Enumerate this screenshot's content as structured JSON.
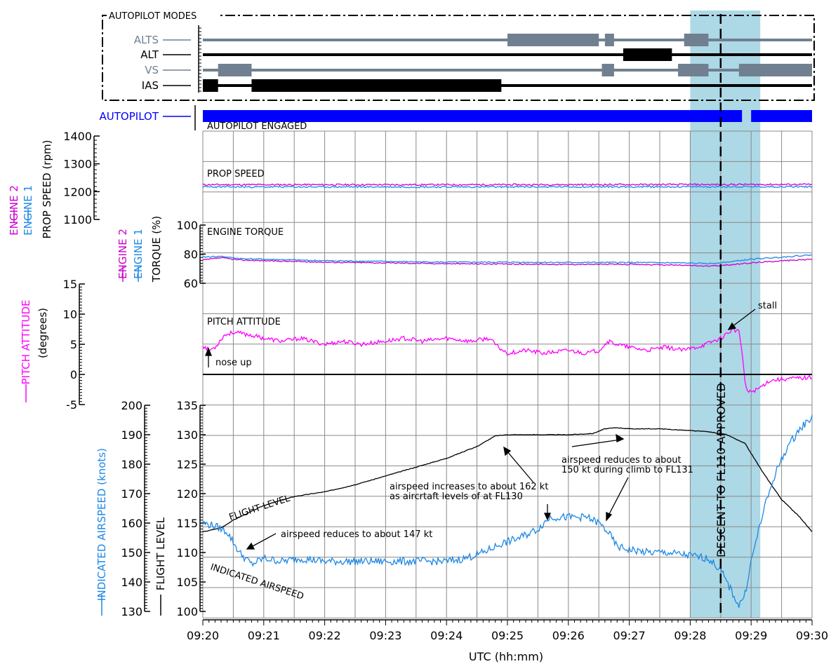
{
  "autopilot_modes": {
    "title": "AUTOPILOT MODES",
    "rows": [
      {
        "label": "ALTS",
        "color": "#708090",
        "segments": [
          [
            25.0,
            26.5
          ],
          [
            26.6,
            26.75
          ],
          [
            27.9,
            28.3
          ]
        ]
      },
      {
        "label": "ALT",
        "color": "#000000",
        "segments": [
          [
            26.9,
            27.7
          ]
        ]
      },
      {
        "label": "VS",
        "color": "#708090",
        "segments": [
          [
            20.25,
            20.8
          ],
          [
            26.55,
            26.75
          ],
          [
            27.8,
            28.3
          ],
          [
            28.8,
            30.0
          ]
        ]
      },
      {
        "label": "IAS",
        "color": "#000000",
        "segments": [
          [
            20.0,
            20.25
          ],
          [
            20.8,
            24.9
          ]
        ]
      }
    ],
    "autopilot": {
      "label": "AUTOPILOT",
      "color": "#0000ff",
      "engaged_text": "AUTOPILOT ENGAGED",
      "segments": [
        [
          20.0,
          28.85
        ],
        [
          29.0,
          30.0
        ]
      ]
    }
  },
  "chart_data": [
    {
      "type": "line",
      "panel": "prop_speed",
      "title": "PROP SPEED",
      "ylabel": "PROP SPEED (rpm)",
      "ylim": [
        1100,
        1400
      ],
      "yticks": [
        "1100",
        "1200",
        "1300",
        "1400"
      ],
      "series": [
        {
          "name": "ENGINE 2",
          "color": "#cc00cc",
          "x": [
            20.0,
            25.0,
            30.0
          ],
          "y": [
            1225,
            1225,
            1226
          ]
        },
        {
          "name": "ENGINE 1",
          "color": "#1e88e5",
          "x": [
            20.0,
            25.0,
            30.0
          ],
          "y": [
            1217,
            1217,
            1218
          ]
        }
      ]
    },
    {
      "type": "line",
      "panel": "engine_torque",
      "title": "ENGINE TORQUE",
      "ylabel": "TORQUE (%)",
      "ylim": [
        60,
        100
      ],
      "yticks": [
        "60",
        "80",
        "100"
      ],
      "series": [
        {
          "name": "ENGINE 2",
          "color": "#cc00cc",
          "x": [
            20.0,
            20.3,
            20.6,
            21.0,
            22.0,
            23.0,
            24.0,
            25.0,
            26.0,
            27.0,
            27.8,
            28.3,
            28.6,
            29.0,
            29.5,
            30.0
          ],
          "y": [
            76,
            77.5,
            76,
            75.5,
            74.5,
            74,
            73.5,
            73.2,
            73,
            73,
            72.5,
            71.8,
            72.5,
            74,
            75.5,
            76.5
          ]
        },
        {
          "name": "ENGINE 1",
          "color": "#1e88e5",
          "x": [
            20.0,
            20.3,
            20.6,
            21.0,
            22.0,
            23.0,
            24.0,
            25.0,
            26.0,
            27.0,
            27.8,
            28.3,
            28.6,
            29.0,
            29.5,
            30.0
          ],
          "y": [
            78,
            78.5,
            77,
            76.5,
            75.5,
            75,
            74.5,
            74.5,
            74.3,
            74.3,
            74,
            73.5,
            74.5,
            76.5,
            78,
            79.5
          ]
        }
      ]
    },
    {
      "type": "line",
      "panel": "pitch_attitude",
      "title": "PITCH ATTITUDE",
      "ylabel": "(degrees)",
      "ylim": [
        -5,
        15
      ],
      "yticks": [
        "-5",
        "0",
        "5",
        "10",
        "15"
      ],
      "series": [
        {
          "name": "PITCH ATTITUDE",
          "color": "#ff00ff",
          "x": [
            20.0,
            20.1,
            20.2,
            20.35,
            20.5,
            20.8,
            21.0,
            21.3,
            21.6,
            22.0,
            22.3,
            22.6,
            23.0,
            23.3,
            23.6,
            24.0,
            24.4,
            24.7,
            24.85,
            25.0,
            25.3,
            25.6,
            26.0,
            26.3,
            26.5,
            26.65,
            26.8,
            27.0,
            27.3,
            27.6,
            27.9,
            28.2,
            28.5,
            28.7,
            28.8,
            28.85,
            28.9,
            28.95,
            29.1,
            29.3,
            29.6,
            30.0
          ],
          "y": [
            4.8,
            4.0,
            4.5,
            6.5,
            7.0,
            6.5,
            6.0,
            5.5,
            6.0,
            5.0,
            5.5,
            5.0,
            5.5,
            6.0,
            5.5,
            6.0,
            5.5,
            6.0,
            4.5,
            3.5,
            4.0,
            3.5,
            4.0,
            3.5,
            4.0,
            5.5,
            5.0,
            4.5,
            4.0,
            4.5,
            4.0,
            4.8,
            6.0,
            7.5,
            7.0,
            4.0,
            -1.5,
            -3.0,
            -2.5,
            -1.0,
            -0.7,
            -0.5
          ]
        }
      ],
      "annotations": [
        "nose up",
        "stall"
      ]
    },
    {
      "type": "line",
      "panel": "airspeed_flight_level",
      "xlabel": "UTC (hh:mm)",
      "xlim": [
        20.0,
        30.0
      ],
      "xticks": [
        "09:20",
        "09:21",
        "09:22",
        "09:23",
        "09:24",
        "09:25",
        "09:26",
        "09:27",
        "09:28",
        "09:29",
        "09:30"
      ],
      "y_left_outer": {
        "label": "INDICATED AIRSPEED (knots)",
        "ylim": [
          130,
          200
        ],
        "ticks": [
          "130",
          "140",
          "150",
          "160",
          "170",
          "180",
          "190",
          "200"
        ]
      },
      "y_left_inner": {
        "label": "FLIGHT LEVEL",
        "ylim": [
          100,
          135
        ],
        "ticks": [
          "100",
          "105",
          "110",
          "115",
          "120",
          "125",
          "130",
          "135"
        ]
      },
      "series": [
        {
          "name": "FLIGHT LEVEL",
          "color": "#000000",
          "axis": "flight_level",
          "x": [
            20.0,
            20.3,
            20.5,
            20.8,
            21.0,
            21.5,
            21.8,
            22.0,
            22.5,
            23.0,
            23.5,
            24.0,
            24.5,
            24.8,
            25.0,
            25.5,
            26.0,
            26.4,
            26.6,
            26.8,
            27.0,
            27.5,
            28.0,
            28.3,
            28.6,
            28.9,
            29.2,
            29.5,
            29.8,
            30.0
          ],
          "y": [
            113.5,
            114.2,
            115.5,
            117.0,
            118.0,
            119.5,
            120.0,
            120.3,
            121.5,
            123.0,
            124.5,
            126.0,
            128.0,
            129.8,
            130.0,
            130.0,
            130.0,
            130.2,
            131.0,
            131.2,
            131.0,
            131.0,
            130.7,
            130.5,
            130.0,
            128.5,
            123.5,
            119.0,
            116.0,
            113.5
          ]
        },
        {
          "name": "INDICATED AIRSPEED",
          "color": "#1e88e5",
          "axis": "airspeed",
          "x": [
            20.0,
            20.2,
            20.4,
            20.6,
            20.8,
            21.0,
            21.3,
            21.6,
            22.0,
            22.5,
            23.0,
            23.5,
            24.0,
            24.3,
            24.6,
            24.9,
            25.2,
            25.5,
            25.7,
            26.0,
            26.3,
            26.5,
            26.65,
            26.8,
            27.0,
            27.3,
            27.6,
            28.0,
            28.3,
            28.5,
            28.6,
            28.7,
            28.8,
            28.9,
            29.0,
            29.2,
            29.4,
            29.6,
            29.8,
            30.0
          ],
          "y": [
            160,
            159,
            157,
            150,
            146,
            148,
            147,
            148,
            147,
            147,
            147,
            147,
            147,
            148,
            150,
            153,
            155,
            158,
            162,
            162,
            162,
            160,
            157,
            152,
            151,
            150,
            150,
            149,
            148,
            144,
            140,
            136,
            132,
            136,
            147,
            164,
            177,
            186,
            192,
            196
          ]
        }
      ],
      "annotations": [
        "FLIGHT LEVEL",
        "INDICATED AIRSPEED",
        "airspeed reduces to about 147 kt",
        "airspeed increases to about 162 kt",
        "as aircrtaft levels of at FL130",
        "airspeed reduces to about",
        "150 kt during climb to FL131",
        "DESCENT TO FL110 APPROVED"
      ]
    }
  ],
  "highlight": {
    "x_start": 28.0,
    "x_end": 29.15,
    "color": "#add8e6"
  },
  "event_line": {
    "x": 28.5,
    "label": "DESCENT TO FL110 APPROVED"
  }
}
